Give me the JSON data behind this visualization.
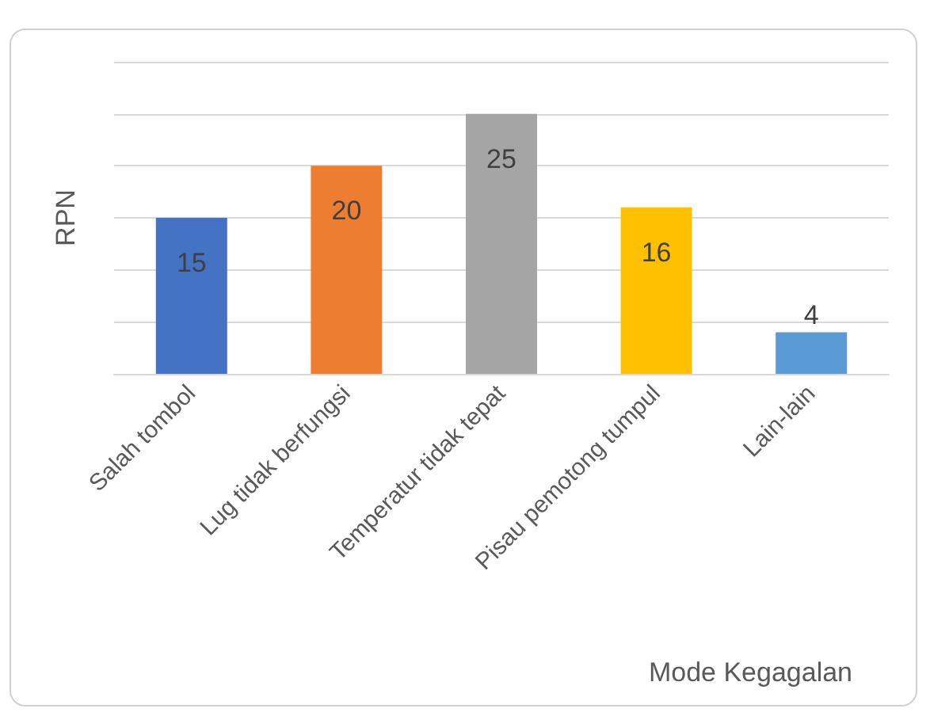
{
  "chart_data": {
    "type": "bar",
    "xlabel": "Mode Kegagalan",
    "ylabel": "RPN",
    "categories": [
      "Salah tombol",
      "Lug tidak berfungsi",
      "Temperatur tidak tepat",
      "Pisau pemotong tumpul",
      "Lain-lain"
    ],
    "values": [
      15,
      20,
      25,
      16,
      4
    ],
    "colors": [
      "#4472c4",
      "#ed7d31",
      "#a5a5a5",
      "#ffc000",
      "#5b9bd5"
    ],
    "ylim": [
      0,
      30
    ],
    "yticks": [
      {
        "value": 0,
        "label": null
      },
      {
        "value": 5,
        "label": null
      },
      {
        "value": 10,
        "label": null
      },
      {
        "value": 15,
        "label": null
      },
      {
        "value": 20,
        "label": null
      },
      {
        "value": 25,
        "label": null
      },
      {
        "value": 30,
        "label": null
      }
    ],
    "grid": "y",
    "data_labels": true
  }
}
